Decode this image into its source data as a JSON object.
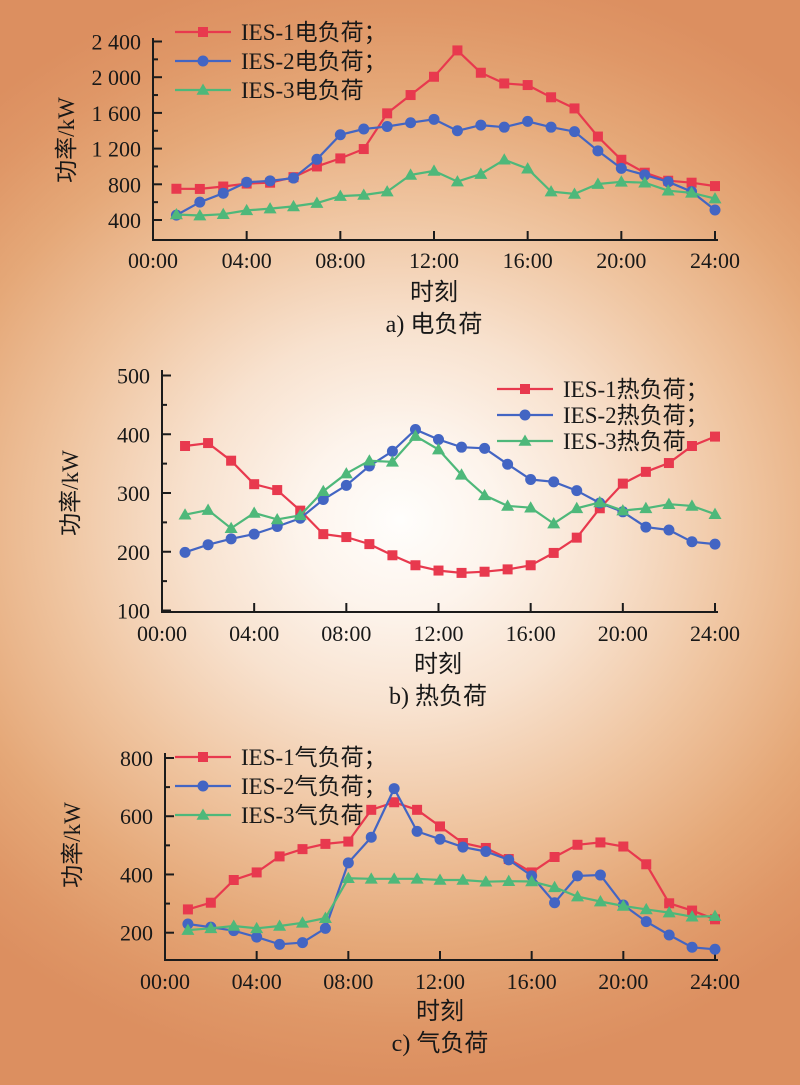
{
  "figure": {
    "series_colors": {
      "ies1": "#e8394e",
      "ies2": "#4365c3",
      "ies3": "#4eb87a"
    },
    "axis_color": "#1b1b1b",
    "background_center": "#fffefc",
    "background_edge": "#dc8f60"
  },
  "chart_data": [
    {
      "id": "a",
      "type": "line",
      "caption": "a) 电负荷",
      "xlabel": "时刻",
      "ylabel": "功率/kW",
      "grid": false,
      "legend_position": "top-left",
      "ylim": [
        400,
        2400
      ],
      "x_ticks": [
        {
          "hour": 0,
          "label": "00:00"
        },
        {
          "hour": 4,
          "label": "04:00"
        },
        {
          "hour": 8,
          "label": "08:00"
        },
        {
          "hour": 12,
          "label": "12:00"
        },
        {
          "hour": 16,
          "label": "16:00"
        },
        {
          "hour": 20,
          "label": "20:00"
        },
        {
          "hour": 24,
          "label": "24:00"
        }
      ],
      "y_ticks": [
        {
          "value": 400,
          "label": "400"
        },
        {
          "value": 800,
          "label": "800"
        },
        {
          "value": 1200,
          "label": "1 200"
        },
        {
          "value": 1600,
          "label": "1 600"
        },
        {
          "value": 2000,
          "label": "2 000"
        },
        {
          "value": 2400,
          "label": "2 400"
        }
      ],
      "y_minor_ticks": [
        600,
        1000,
        1400,
        1800,
        2200
      ],
      "hours": [
        1,
        2,
        3,
        4,
        5,
        6,
        7,
        8,
        9,
        10,
        11,
        12,
        13,
        14,
        15,
        16,
        17,
        18,
        19,
        20,
        21,
        22,
        23,
        24
      ],
      "series": [
        {
          "name": "IES-1电负荷；",
          "marker": "square",
          "color": "#e8394e",
          "values": [
            750,
            748,
            775,
            808,
            818,
            880,
            1000,
            1090,
            1195,
            1595,
            1800,
            2005,
            2300,
            2050,
            1930,
            1912,
            1775,
            1650,
            1335,
            1075,
            930,
            840,
            818,
            780
          ]
        },
        {
          "name": "IES-2电负荷；",
          "marker": "circle",
          "color": "#4365c3",
          "values": [
            455,
            600,
            700,
            823,
            838,
            870,
            1080,
            1355,
            1420,
            1448,
            1490,
            1528,
            1400,
            1463,
            1440,
            1505,
            1440,
            1390,
            1175,
            978,
            905,
            828,
            718,
            512
          ]
        },
        {
          "name": "IES-3电负荷",
          "marker": "triangle",
          "color": "#4eb87a",
          "values": [
            462,
            450,
            465,
            508,
            528,
            552,
            590,
            668,
            680,
            718,
            905,
            950,
            830,
            915,
            1075,
            975,
            718,
            692,
            803,
            828,
            818,
            728,
            705,
            640
          ]
        }
      ]
    },
    {
      "id": "b",
      "type": "line",
      "caption": "b) 热负荷",
      "xlabel": "时刻",
      "ylabel": "功率/kW",
      "grid": false,
      "legend_position": "top-right",
      "ylim": [
        100,
        500
      ],
      "x_ticks": [
        {
          "hour": 0,
          "label": "00:00"
        },
        {
          "hour": 4,
          "label": "04:00"
        },
        {
          "hour": 8,
          "label": "08:00"
        },
        {
          "hour": 12,
          "label": "12:00"
        },
        {
          "hour": 16,
          "label": "16:00"
        },
        {
          "hour": 20,
          "label": "20:00"
        },
        {
          "hour": 24,
          "label": "24:00"
        }
      ],
      "y_ticks": [
        {
          "value": 100,
          "label": "100"
        },
        {
          "value": 200,
          "label": "200"
        },
        {
          "value": 300,
          "label": "300"
        },
        {
          "value": 400,
          "label": "400"
        },
        {
          "value": 500,
          "label": "500"
        }
      ],
      "y_minor_ticks": [
        150,
        250,
        350,
        450
      ],
      "hours": [
        1,
        2,
        3,
        4,
        5,
        6,
        7,
        8,
        9,
        10,
        11,
        12,
        13,
        14,
        15,
        16,
        17,
        18,
        19,
        20,
        21,
        22,
        23,
        24
      ],
      "series": [
        {
          "name": "IES-1热负荷；",
          "marker": "square",
          "color": "#e8394e",
          "values": [
            380,
            385,
            355,
            315,
            305,
            270,
            230,
            225,
            213,
            194,
            177,
            168,
            164,
            166,
            170,
            177,
            198,
            224,
            274,
            316,
            336,
            351,
            380,
            396
          ]
        },
        {
          "name": "IES-2热负荷；",
          "marker": "circle",
          "color": "#4365c3",
          "values": [
            199,
            212,
            222,
            230,
            243,
            257,
            289,
            313,
            346,
            371,
            408,
            391,
            378,
            376,
            349,
            323,
            319,
            304,
            283,
            268,
            242,
            237,
            217,
            213
          ]
        },
        {
          "name": "IES-3热负荷",
          "marker": "triangle",
          "color": "#4eb87a",
          "values": [
            263,
            271,
            240,
            266,
            255,
            262,
            303,
            333,
            355,
            353,
            397,
            374,
            331,
            296,
            278,
            275,
            248,
            274,
            284,
            270,
            274,
            281,
            278,
            264
          ]
        }
      ]
    },
    {
      "id": "c",
      "type": "line",
      "caption": "c) 气负荷",
      "xlabel": "时刻",
      "ylabel": "功率/kW",
      "grid": false,
      "legend_position": "top-left",
      "ylim": [
        200,
        800
      ],
      "x_ticks": [
        {
          "hour": 0,
          "label": "00:00"
        },
        {
          "hour": 4,
          "label": "04:00"
        },
        {
          "hour": 8,
          "label": "08:00"
        },
        {
          "hour": 12,
          "label": "12:00"
        },
        {
          "hour": 16,
          "label": "16:00"
        },
        {
          "hour": 20,
          "label": "20:00"
        },
        {
          "hour": 24,
          "label": "24:00"
        }
      ],
      "y_ticks": [
        {
          "value": 200,
          "label": "200"
        },
        {
          "value": 400,
          "label": "400"
        },
        {
          "value": 600,
          "label": "600"
        },
        {
          "value": 800,
          "label": "800"
        }
      ],
      "y_minor_ticks": [
        300,
        500,
        700
      ],
      "hours": [
        1,
        2,
        3,
        4,
        5,
        6,
        7,
        8,
        9,
        10,
        11,
        12,
        13,
        14,
        15,
        16,
        17,
        18,
        19,
        20,
        21,
        22,
        23,
        24
      ],
      "series": [
        {
          "name": "IES-1气负荷；",
          "marker": "square",
          "color": "#e8394e",
          "values": [
            280,
            303,
            381,
            407,
            462,
            487,
            505,
            513,
            622,
            648,
            622,
            565,
            508,
            491,
            453,
            407,
            460,
            502,
            510,
            496,
            435,
            301,
            276,
            246
          ]
        },
        {
          "name": "IES-2气负荷；",
          "marker": "circle",
          "color": "#4365c3",
          "values": [
            230,
            219,
            207,
            185,
            160,
            166,
            215,
            440,
            528,
            695,
            548,
            521,
            494,
            479,
            450,
            395,
            303,
            395,
            398,
            295,
            238,
            192,
            150,
            143
          ]
        },
        {
          "name": "IES-3气负荷",
          "marker": "triangle",
          "color": "#4eb87a",
          "values": [
            209,
            215,
            223,
            215,
            223,
            234,
            250,
            387,
            385,
            385,
            385,
            381,
            381,
            375,
            377,
            376,
            356,
            324,
            307,
            292,
            280,
            269,
            255,
            257
          ]
        }
      ]
    }
  ]
}
